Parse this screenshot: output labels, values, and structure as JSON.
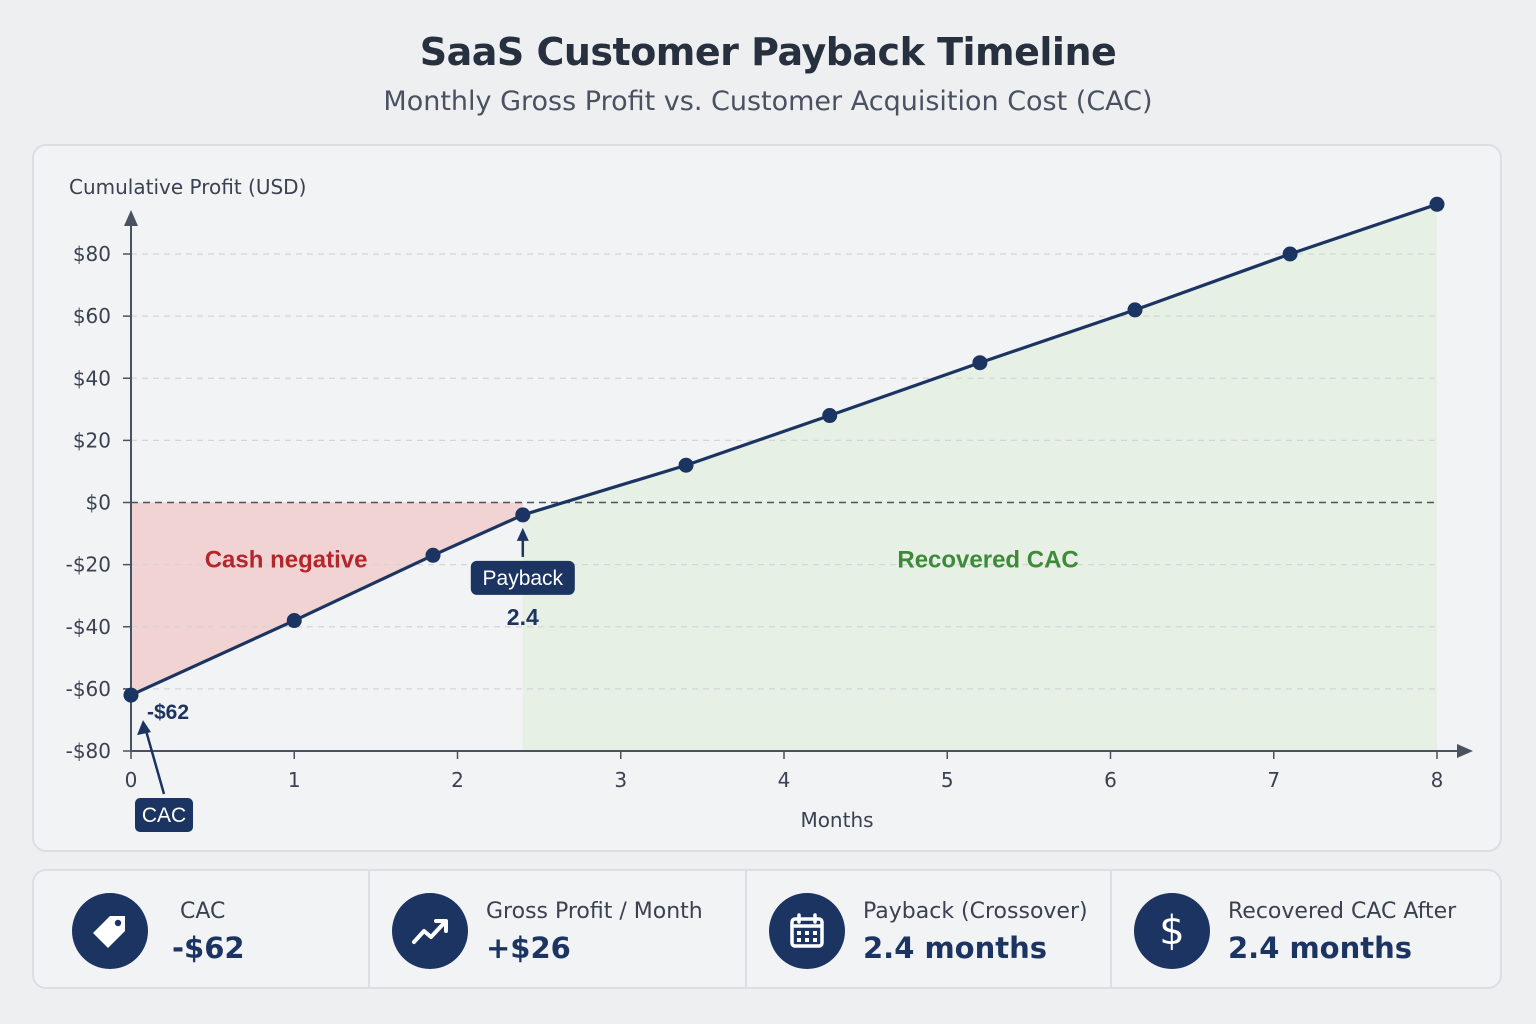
{
  "header": {
    "title": "SaaS Customer Payback Timeline",
    "subtitle": "Monthly Gross Profit vs. Customer Acquisition Cost (CAC)"
  },
  "chart_data": {
    "type": "line",
    "title": "SaaS Customer Payback Timeline",
    "subtitle": "Monthly Gross Profit vs. Customer Acquisition Cost (CAC)",
    "xlabel": "Months",
    "ylabel": "Cumulative Profit (USD)",
    "xlim": [
      0,
      8
    ],
    "ylim": [
      -80,
      80
    ],
    "x_ticks": [
      0,
      1,
      2,
      3,
      4,
      5,
      6,
      7,
      8
    ],
    "y_ticks": [
      -80,
      -60,
      -40,
      -20,
      0,
      20,
      40,
      60,
      80
    ],
    "y_tick_labels": [
      "-$80",
      "-$60",
      "-$40",
      "-$20",
      "$0",
      "$20",
      "$40",
      "$60",
      "$80"
    ],
    "grid": "horizontal dashed",
    "series": [
      {
        "color": "#1c3461",
        "points": [
          {
            "x": 0,
            "y": -62
          },
          {
            "x": 1,
            "y": -38
          },
          {
            "x": 1.85,
            "y": -17
          },
          {
            "x": 2.4,
            "y": -4
          },
          {
            "x": 3.4,
            "y": 12
          },
          {
            "x": 4.28,
            "y": 28
          },
          {
            "x": 5.2,
            "y": 45
          },
          {
            "x": 6.15,
            "y": 62
          },
          {
            "x": 7.1,
            "y": 80
          },
          {
            "x": 8,
            "y": 96
          }
        ]
      }
    ],
    "regions": [
      {
        "label": "Cash negative",
        "color": "#b3262c",
        "fill": "#f2cfcf"
      },
      {
        "label": "Recovered CAC",
        "color": "#3d8a3a",
        "fill": "#e4efe0"
      }
    ],
    "annotations": [
      {
        "label": "CAC",
        "value_label": "-$62",
        "x": 0,
        "y": -62
      },
      {
        "label": "Payback",
        "value_label": "2.4",
        "x": 2.4,
        "y": -4
      }
    ],
    "line_color": "#1c3461"
  },
  "kpis": [
    {
      "icon": "price-tag-icon",
      "label": "CAC",
      "value": "-$62"
    },
    {
      "icon": "trending-up-icon",
      "label": "Gross Profit / Month",
      "value": "+$26"
    },
    {
      "icon": "calendar-icon",
      "label": "Payback (Crossover)",
      "value": "2.4 months"
    },
    {
      "icon": "dollar-icon",
      "label": "Recovered CAC After",
      "value": "2.4 months"
    }
  ]
}
